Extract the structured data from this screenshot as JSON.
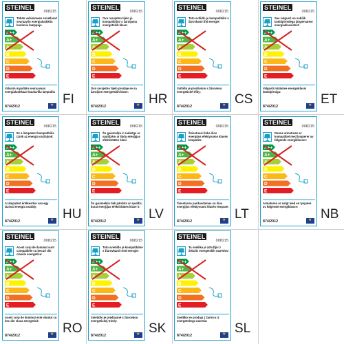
{
  "brand": "STEINEL",
  "product_code": "008215",
  "regulation": "874/2012",
  "energy_classes": [
    "A++",
    "A+",
    "A",
    "B",
    "C",
    "D",
    "E"
  ],
  "colors": {
    "label_border": "#1aa0c8",
    "class_colors": [
      "#009a44",
      "#4fb645",
      "#a7cf38",
      "#fef200",
      "#fbb818",
      "#f27023",
      "#e31d23"
    ],
    "cross": "#d62020"
  },
  "labels": [
    {
      "lang": "FI",
      "top": "Tähän valaisimeen sovellusvt seuraaviin energialuokkiin kuuluvia lamppuja",
      "bottom": "Valaisin myydään seuraavaan energialuokkaan kuuluvilla lampuilla"
    },
    {
      "lang": "HR",
      "top": "Ovo rasvjetno tijelo je kompatibilno s žaruljama energetskih klase:",
      "bottom": "Ovo rasvjetno tijelo prodaje se sa žaruljom energetskih klase:"
    },
    {
      "lang": "CS",
      "top": "Toto svítidlo je kompatibilní s žárovkami tříd energie:",
      "bottom": "Svítidlo je prodáváno s žárovkou energetické třídy:"
    },
    {
      "lang": "ET",
      "top": "See valgusti on sobilik lambipirnidega järgnevatest energiaklassidest:",
      "bottom": "Valgusti müüakse energiaklassi lambipirniga:"
    },
    {
      "lang": "HU",
      "top": "Ez a lámpatest kompatibilis izzók az energia osztályok:",
      "bottom": "A lámpatest értékesítve van egy izzóval energia osztály:"
    },
    {
      "lang": "LV",
      "top": "Šo gaismekļu ir saderīgs ar spuldzēm ar šādu enerģijas efektivitātes klasi:",
      "bottom": "Šo gaismekļis tiek pārdots ar spuldzi, kurai enerģijas efektivitātes klase ir:"
    },
    {
      "lang": "LT",
      "top": "Šviestuvai tinka šios energijos efektyvumo klasės lemputės:",
      "bottom": "Šviestuvas parduodamas su šios energijos efektyvumo klasės lempute:"
    },
    {
      "lang": "NB",
      "top": "Denne armaturen er kompatibel med lyspærer av følgende energiklasser:",
      "bottom": "Armaturen er solgt med en lyspære av følgende energiklasse:"
    },
    {
      "lang": "RO",
      "top": "Acest corp de iluminat sunt compatibile cu becuri din clasele energetice:",
      "bottom": "Acest corp de iluminat este vândut cu bec din clasa energetică:"
    },
    {
      "lang": "SK",
      "top": "Toto svietidlo je kompatibilné s žiarovkami tried energie:",
      "bottom": "Svietidlo je predávané s žiarovkou energetickej triedy:"
    },
    {
      "lang": "SL",
      "top": "Ta svetilka je združljiv z žebulic energetskih razredov:",
      "bottom": "Svetilko se prodaja z žarnico iz energetskega razreda:"
    }
  ]
}
